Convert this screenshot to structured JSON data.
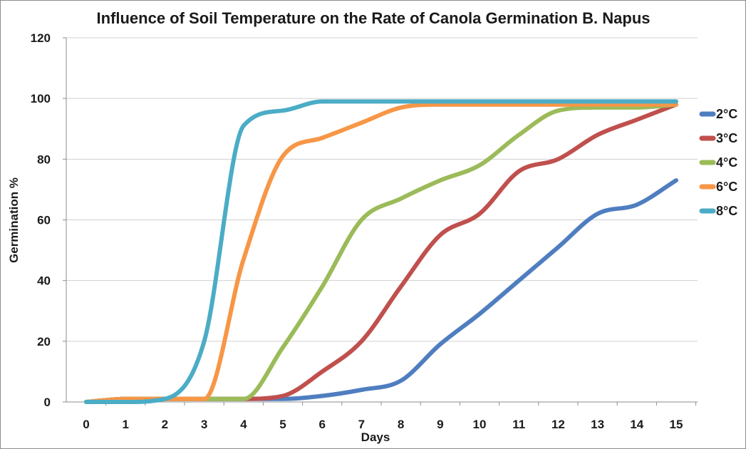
{
  "chart_data": {
    "type": "line",
    "title": "Influence of Soil Temperature on the Rate of Canola Germination B. Napus",
    "xlabel": "Days",
    "ylabel": "Germination %",
    "x": [
      0,
      1,
      2,
      3,
      4,
      5,
      6,
      7,
      8,
      9,
      10,
      11,
      12,
      13,
      14,
      15
    ],
    "xlim": [
      0,
      15
    ],
    "ylim": [
      0,
      120
    ],
    "yticks": [
      0,
      20,
      40,
      60,
      80,
      100,
      120
    ],
    "grid": "horizontal",
    "legend_position": "right",
    "series": [
      {
        "name": "2°C",
        "color": "#4f7ec0",
        "values": [
          0,
          1,
          1,
          1,
          1,
          1,
          2,
          4,
          7,
          19,
          29,
          40,
          51,
          62,
          65,
          73
        ]
      },
      {
        "name": "3°C",
        "color": "#c0504d",
        "values": [
          0,
          1,
          1,
          1,
          1,
          2,
          10,
          20,
          38,
          55,
          62,
          76,
          80,
          88,
          93,
          98
        ]
      },
      {
        "name": "4°C",
        "color": "#9bbb59",
        "values": [
          0,
          1,
          1,
          1,
          1,
          18,
          38,
          60,
          67,
          73,
          78,
          88,
          96,
          97,
          97,
          98
        ]
      },
      {
        "name": "6°C",
        "color": "#f79646",
        "values": [
          0,
          1,
          1,
          1,
          47,
          81,
          87,
          92,
          97,
          98,
          98,
          98,
          98,
          98,
          98,
          98
        ]
      },
      {
        "name": "8°C",
        "color": "#4bacc6",
        "values": [
          0,
          0,
          1,
          20,
          91,
          96,
          99,
          99,
          99,
          99,
          99,
          99,
          99,
          99,
          99,
          99
        ]
      }
    ]
  }
}
